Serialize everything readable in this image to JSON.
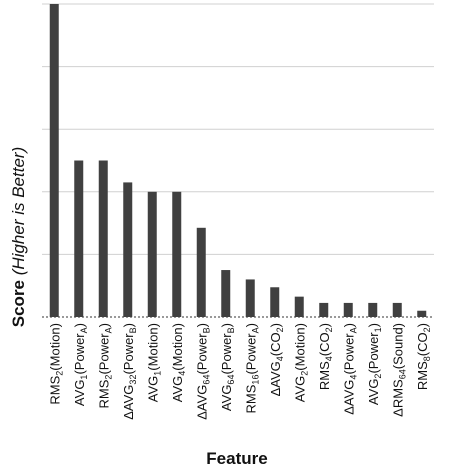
{
  "chart_data": {
    "type": "bar",
    "ylabel_main": "Score",
    "ylabel_note": "(Higher is Better)",
    "xlabel": "Feature",
    "ylim": [
      0,
      100
    ],
    "grid": true,
    "bar_color": "#404040",
    "grid_color": "#d0d0d0",
    "categories": [
      {
        "base": "RMS",
        "sub": "2",
        "rest": "(Motion)",
        "sub2": ""
      },
      {
        "base": "AVG",
        "sub": "1",
        "rest": "(Power",
        "sub2": "A",
        "close": ")"
      },
      {
        "base": "RMS",
        "sub": "2",
        "rest": "(Power",
        "sub2": "A",
        "close": ")"
      },
      {
        "base": "ΔAVG",
        "sub": "32",
        "rest": "(Power",
        "sub2": "B",
        "close": ")"
      },
      {
        "base": "AVG",
        "sub": "1",
        "rest": "(Motion)",
        "sub2": ""
      },
      {
        "base": "AVG",
        "sub": "4",
        "rest": "(Motion)",
        "sub2": ""
      },
      {
        "base": "ΔAVG",
        "sub": "64",
        "rest": "(Power",
        "sub2": "B",
        "close": ")"
      },
      {
        "base": "AVG",
        "sub": "64",
        "rest": "(Power",
        "sub2": "B",
        "close": ")"
      },
      {
        "base": "RMS",
        "sub": "16",
        "rest": "(Power",
        "sub2": "A",
        "close": ")"
      },
      {
        "base": "ΔAVG",
        "sub": "4",
        "rest": "(CO",
        "sub2": "2",
        "close": ")"
      },
      {
        "base": "AVG",
        "sub": "2",
        "rest": "(Motion)",
        "sub2": ""
      },
      {
        "base": "RMS",
        "sub": "4",
        "rest": "(CO",
        "sub2": "2",
        "close": ")"
      },
      {
        "base": "ΔAVG",
        "sub": "4",
        "rest": "(Power",
        "sub2": "A",
        "close": ")"
      },
      {
        "base": "AVG",
        "sub": "2",
        "rest": "(Power",
        "sub2": "1",
        "close": ")"
      },
      {
        "base": "ΔRMS",
        "sub": "64",
        "rest": "(Sound)",
        "sub2": ""
      },
      {
        "base": "RMS",
        "sub": "8",
        "rest": "(CO",
        "sub2": "2",
        "close": ")"
      }
    ],
    "values": [
      100,
      50,
      50,
      43,
      40,
      40,
      28.5,
      15,
      12,
      9.5,
      6.5,
      4.5,
      4.5,
      4.5,
      4.5,
      2
    ]
  }
}
